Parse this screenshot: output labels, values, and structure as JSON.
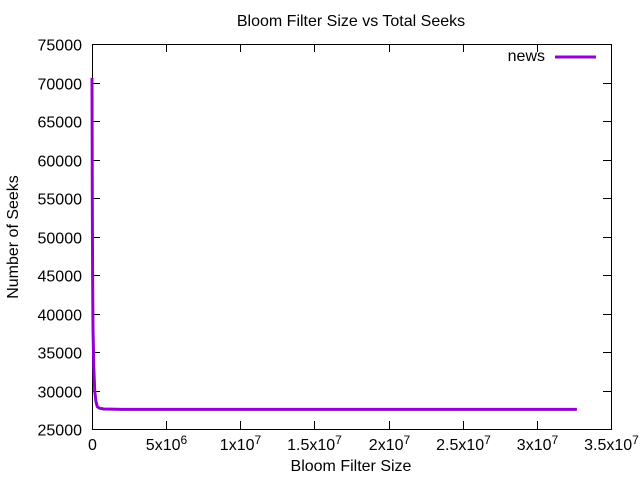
{
  "chart_data": {
    "type": "line",
    "title": "Bloom Filter Size vs Total Seeks",
    "xlabel": "Bloom Filter Size",
    "ylabel": "Number of Seeks",
    "xlim": [
      0,
      35000000
    ],
    "ylim": [
      25000,
      75000
    ],
    "grid": false,
    "legend_position": "top-right",
    "x_ticks": [
      {
        "value": 0,
        "label": "0",
        "exp": ""
      },
      {
        "value": 5000000,
        "label": "5x10",
        "exp": "6"
      },
      {
        "value": 10000000,
        "label": "1x10",
        "exp": "7"
      },
      {
        "value": 15000000,
        "label": "1.5x10",
        "exp": "7"
      },
      {
        "value": 20000000,
        "label": "2x10",
        "exp": "7"
      },
      {
        "value": 25000000,
        "label": "2.5x10",
        "exp": "7"
      },
      {
        "value": 30000000,
        "label": "3x10",
        "exp": "7"
      },
      {
        "value": 35000000,
        "label": "3.5x10",
        "exp": "7"
      }
    ],
    "y_ticks": [
      25000,
      30000,
      35000,
      40000,
      45000,
      50000,
      55000,
      60000,
      65000,
      70000,
      75000
    ],
    "series": [
      {
        "name": "news",
        "color": "#9400d3",
        "points": [
          [
            0,
            70600
          ],
          [
            10000,
            65000
          ],
          [
            20000,
            55000
          ],
          [
            40000,
            45000
          ],
          [
            70000,
            38000
          ],
          [
            120000,
            33000
          ],
          [
            180000,
            30000
          ],
          [
            260000,
            28600
          ],
          [
            360000,
            27900
          ],
          [
            500000,
            27700
          ],
          [
            800000,
            27600
          ],
          [
            2000000,
            27550
          ],
          [
            10000000,
            27550
          ],
          [
            20000000,
            27550
          ],
          [
            32700000,
            27550
          ]
        ]
      }
    ]
  }
}
